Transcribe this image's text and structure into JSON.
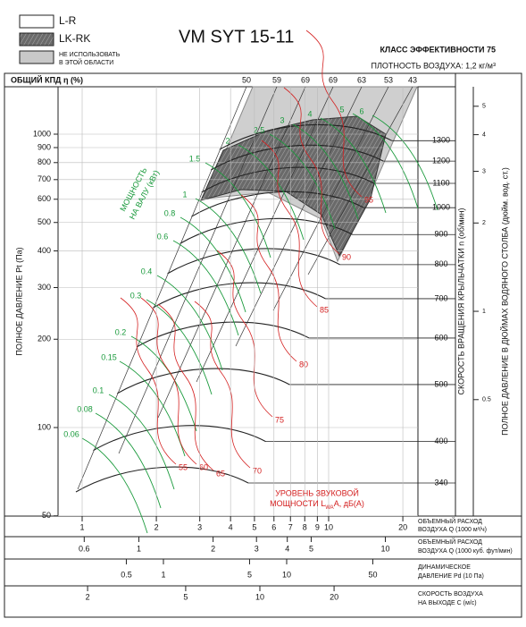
{
  "chart_data": {
    "type": "fan-nomogram",
    "title": "VM SYT 15-11",
    "legend": [
      "L-R",
      "LK-RK",
      "НЕ ИСПОЛЬЗОВАТЬ",
      "В ЭТОЙ ОБЛАСТИ"
    ],
    "efficiency_class": "КЛАСС ЭФФЕКТИВНОСТИ 75",
    "air_density": "ПЛОТНОСТЬ ВОЗДУХА: 1,2 кг/м³",
    "efficiency_axis_label": "ОБЩИЙ КПД η (%)",
    "efficiency_labels": [
      50,
      59,
      69,
      69,
      63,
      53,
      43
    ],
    "pressure_label": "ПОЛНОЕ ДАВЛЕНИЕ Pt (Па)",
    "ylim": [
      50,
      1250
    ],
    "yticks": [
      50,
      100,
      200,
      300,
      400,
      500,
      600,
      700,
      800,
      900,
      1000
    ],
    "log_scale": true,
    "rpm_label": "СКОРОСТЬ ВРАЩЕНИЯ КРЫЛЬЧАТКИ  n (об/мин)",
    "rpm_ticks": [
      340,
      400,
      500,
      600,
      700,
      800,
      900,
      1000,
      1100,
      1200,
      1300
    ],
    "inch_label": "ПОЛНОЕ ДАВЛЕНИЕ В ДЮЙМАХ ВОДЯНОГО СТОЛБА (дюйм. вод. ст.)",
    "inch_ticks": [
      0.5,
      1,
      2,
      3,
      4,
      5
    ],
    "power_label": [
      "МОЩНОСТЬ",
      "НА ВАЛУ (кВт)"
    ],
    "power_kw": [
      0.06,
      0.08,
      0.1,
      0.15,
      0.2,
      0.3,
      0.4,
      0.6,
      0.8,
      1,
      1.5,
      2,
      2.5,
      3,
      4,
      5,
      6
    ],
    "sound_label": [
      "УРОВЕНЬ ЗВУКОВОЙ",
      "МОЩНОСТИ L",
      "WA",
      "A, дБ(А)"
    ],
    "sound_levels": [
      55,
      60,
      65,
      70,
      75,
      80,
      85,
      90,
      95
    ],
    "flow_m3h": {
      "label": [
        "ОБЪЕМНЫЙ РАСХОД",
        "ВОЗДУХА Q (1000 м³/ч)"
      ],
      "ticks": [
        1,
        2,
        3,
        4,
        5,
        6,
        7,
        8,
        9,
        10,
        20
      ]
    },
    "flow_cfm": {
      "label": [
        "ОБЪЕМНЫЙ РАСХОД",
        "ВОЗДУХА Q (1000 куб. фут/мин)"
      ],
      "ticks": [
        0.6,
        1,
        2,
        3,
        4,
        5,
        10
      ]
    },
    "dynamic_pressure": {
      "label": [
        "ДИНАМИЧЕСКОЕ",
        "ДАВЛЕНИЕ Pd (10 Па)"
      ],
      "ticks": [
        0.5,
        1,
        5,
        10,
        50
      ]
    },
    "velocity": {
      "label": [
        "СКОРОСТЬ ВОЗДУХА",
        "НА ВЫХОДЕ C (м/с)"
      ],
      "ticks": [
        2,
        5,
        10,
        20
      ]
    }
  }
}
